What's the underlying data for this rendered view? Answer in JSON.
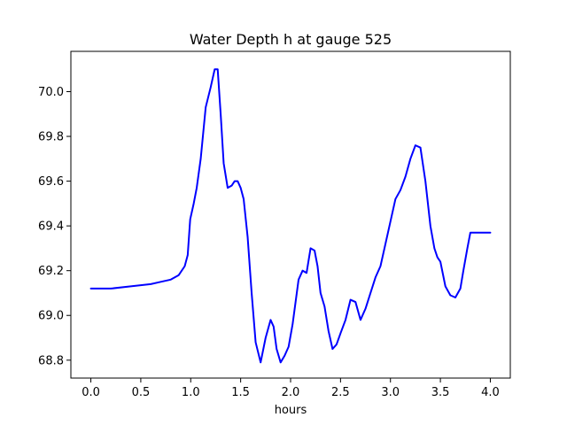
{
  "chart_data": {
    "type": "line",
    "title": "Water Depth h at gauge 525",
    "xlabel": "hours",
    "ylabel": "",
    "xlim": [
      -0.2,
      4.2
    ],
    "ylim": [
      68.72,
      70.18
    ],
    "xticks": [
      0.0,
      0.5,
      1.0,
      1.5,
      2.0,
      2.5,
      3.0,
      3.5,
      4.0
    ],
    "xtick_labels": [
      "0.0",
      "0.5",
      "1.0",
      "1.5",
      "2.0",
      "2.5",
      "3.0",
      "3.5",
      "4.0"
    ],
    "yticks": [
      68.8,
      69.0,
      69.2,
      69.4,
      69.6,
      69.8,
      70.0
    ],
    "ytick_labels": [
      "68.8",
      "69.0",
      "69.2",
      "69.4",
      "69.6",
      "69.8",
      "70.0"
    ],
    "grid": false,
    "series": [
      {
        "color": "#0000ff",
        "x": [
          0.0,
          0.2,
          0.4,
          0.6,
          0.7,
          0.8,
          0.88,
          0.94,
          0.97,
          0.99,
          0.995,
          1.01,
          1.03,
          1.06,
          1.1,
          1.15,
          1.2,
          1.24,
          1.27,
          1.3,
          1.33,
          1.37,
          1.41,
          1.44,
          1.47,
          1.5,
          1.53,
          1.57,
          1.61,
          1.65,
          1.7,
          1.75,
          1.8,
          1.83,
          1.86,
          1.9,
          1.94,
          1.98,
          2.02,
          2.05,
          2.08,
          2.12,
          2.16,
          2.2,
          2.24,
          2.27,
          2.3,
          2.34,
          2.38,
          2.42,
          2.46,
          2.5,
          2.55,
          2.6,
          2.65,
          2.7,
          2.75,
          2.8,
          2.85,
          2.9,
          2.95,
          3.0,
          3.05,
          3.1,
          3.15,
          3.2,
          3.25,
          3.3,
          3.35,
          3.4,
          3.44,
          3.47,
          3.5,
          3.55,
          3.6,
          3.65,
          3.7,
          3.73,
          3.77,
          3.8,
          3.85,
          3.9,
          3.95,
          4.0
        ],
        "values": [
          69.12,
          69.12,
          69.13,
          69.14,
          69.15,
          69.16,
          69.18,
          69.22,
          69.27,
          69.4,
          69.43,
          69.46,
          69.5,
          69.57,
          69.7,
          69.93,
          70.02,
          70.1,
          70.1,
          69.9,
          69.68,
          69.57,
          69.58,
          69.6,
          69.6,
          69.57,
          69.52,
          69.35,
          69.1,
          68.88,
          68.79,
          68.9,
          68.98,
          68.95,
          68.85,
          68.79,
          68.82,
          68.86,
          68.96,
          69.06,
          69.16,
          69.2,
          69.19,
          69.3,
          69.29,
          69.22,
          69.1,
          69.04,
          68.93,
          68.85,
          68.87,
          68.92,
          68.98,
          69.07,
          69.06,
          68.98,
          69.03,
          69.1,
          69.17,
          69.22,
          69.32,
          69.42,
          69.52,
          69.56,
          69.62,
          69.7,
          69.76,
          69.75,
          69.6,
          69.4,
          69.3,
          69.26,
          69.24,
          69.13,
          69.09,
          69.08,
          69.12,
          69.2,
          69.3,
          69.37,
          69.37,
          69.37,
          69.37,
          69.37
        ]
      }
    ]
  }
}
